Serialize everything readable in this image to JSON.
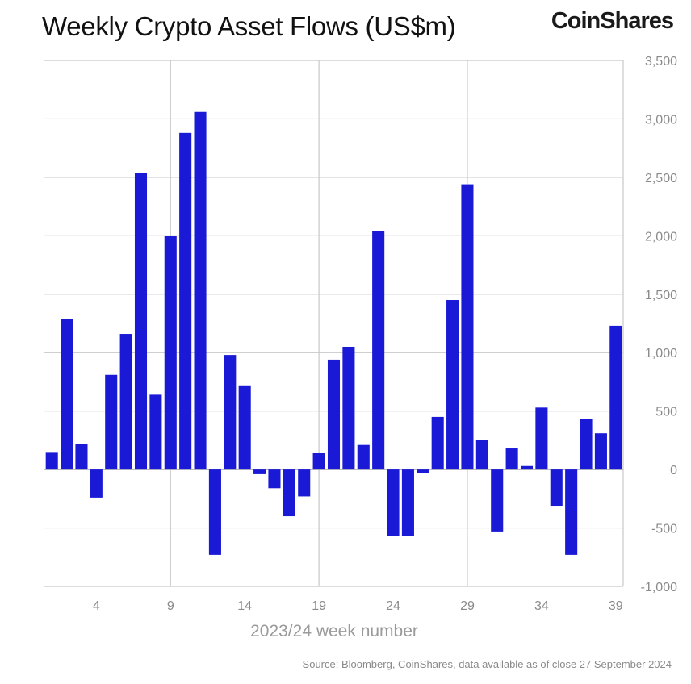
{
  "title": "Weekly Crypto Asset Flows (US$m)",
  "brand": "CoinShares",
  "source": "Source: Bloomberg, CoinShares, data available as of close 27 September 2024",
  "colors": {
    "bar": "#1a1ad6",
    "grid": "#c8c8c8",
    "tick_text": "#8a8a8a"
  },
  "chart_data": {
    "type": "bar",
    "xlabel": "2023/24 week number",
    "ylabel": "",
    "ylim": [
      -1000,
      3500
    ],
    "yticks": [
      -1000,
      -500,
      0,
      500,
      1000,
      1500,
      2000,
      2500,
      3000,
      3500
    ],
    "ytick_labels": [
      "-1,000",
      "-500",
      "0",
      "500",
      "1,000",
      "1,500",
      "2,000",
      "2,500",
      "3,000",
      "3,500"
    ],
    "xtick_labels": [
      "4",
      "9",
      "14",
      "19",
      "24",
      "29",
      "34",
      "39"
    ],
    "categories": [
      1,
      2,
      3,
      4,
      5,
      6,
      7,
      8,
      9,
      10,
      11,
      12,
      13,
      14,
      15,
      16,
      17,
      18,
      19,
      20,
      21,
      22,
      23,
      24,
      25,
      26,
      27,
      28,
      29,
      30,
      31,
      32,
      33,
      34,
      35,
      36,
      37,
      38,
      39
    ],
    "values": [
      150,
      1290,
      220,
      -240,
      810,
      1160,
      2540,
      640,
      2000,
      2880,
      3060,
      -730,
      980,
      720,
      -40,
      -160,
      -400,
      -230,
      140,
      940,
      1050,
      210,
      2040,
      -570,
      -570,
      -30,
      450,
      1450,
      2440,
      250,
      -530,
      180,
      30,
      530,
      -310,
      -730,
      430,
      310,
      1230
    ],
    "grid": true,
    "legend": "none",
    "y_axis_position": "right"
  }
}
